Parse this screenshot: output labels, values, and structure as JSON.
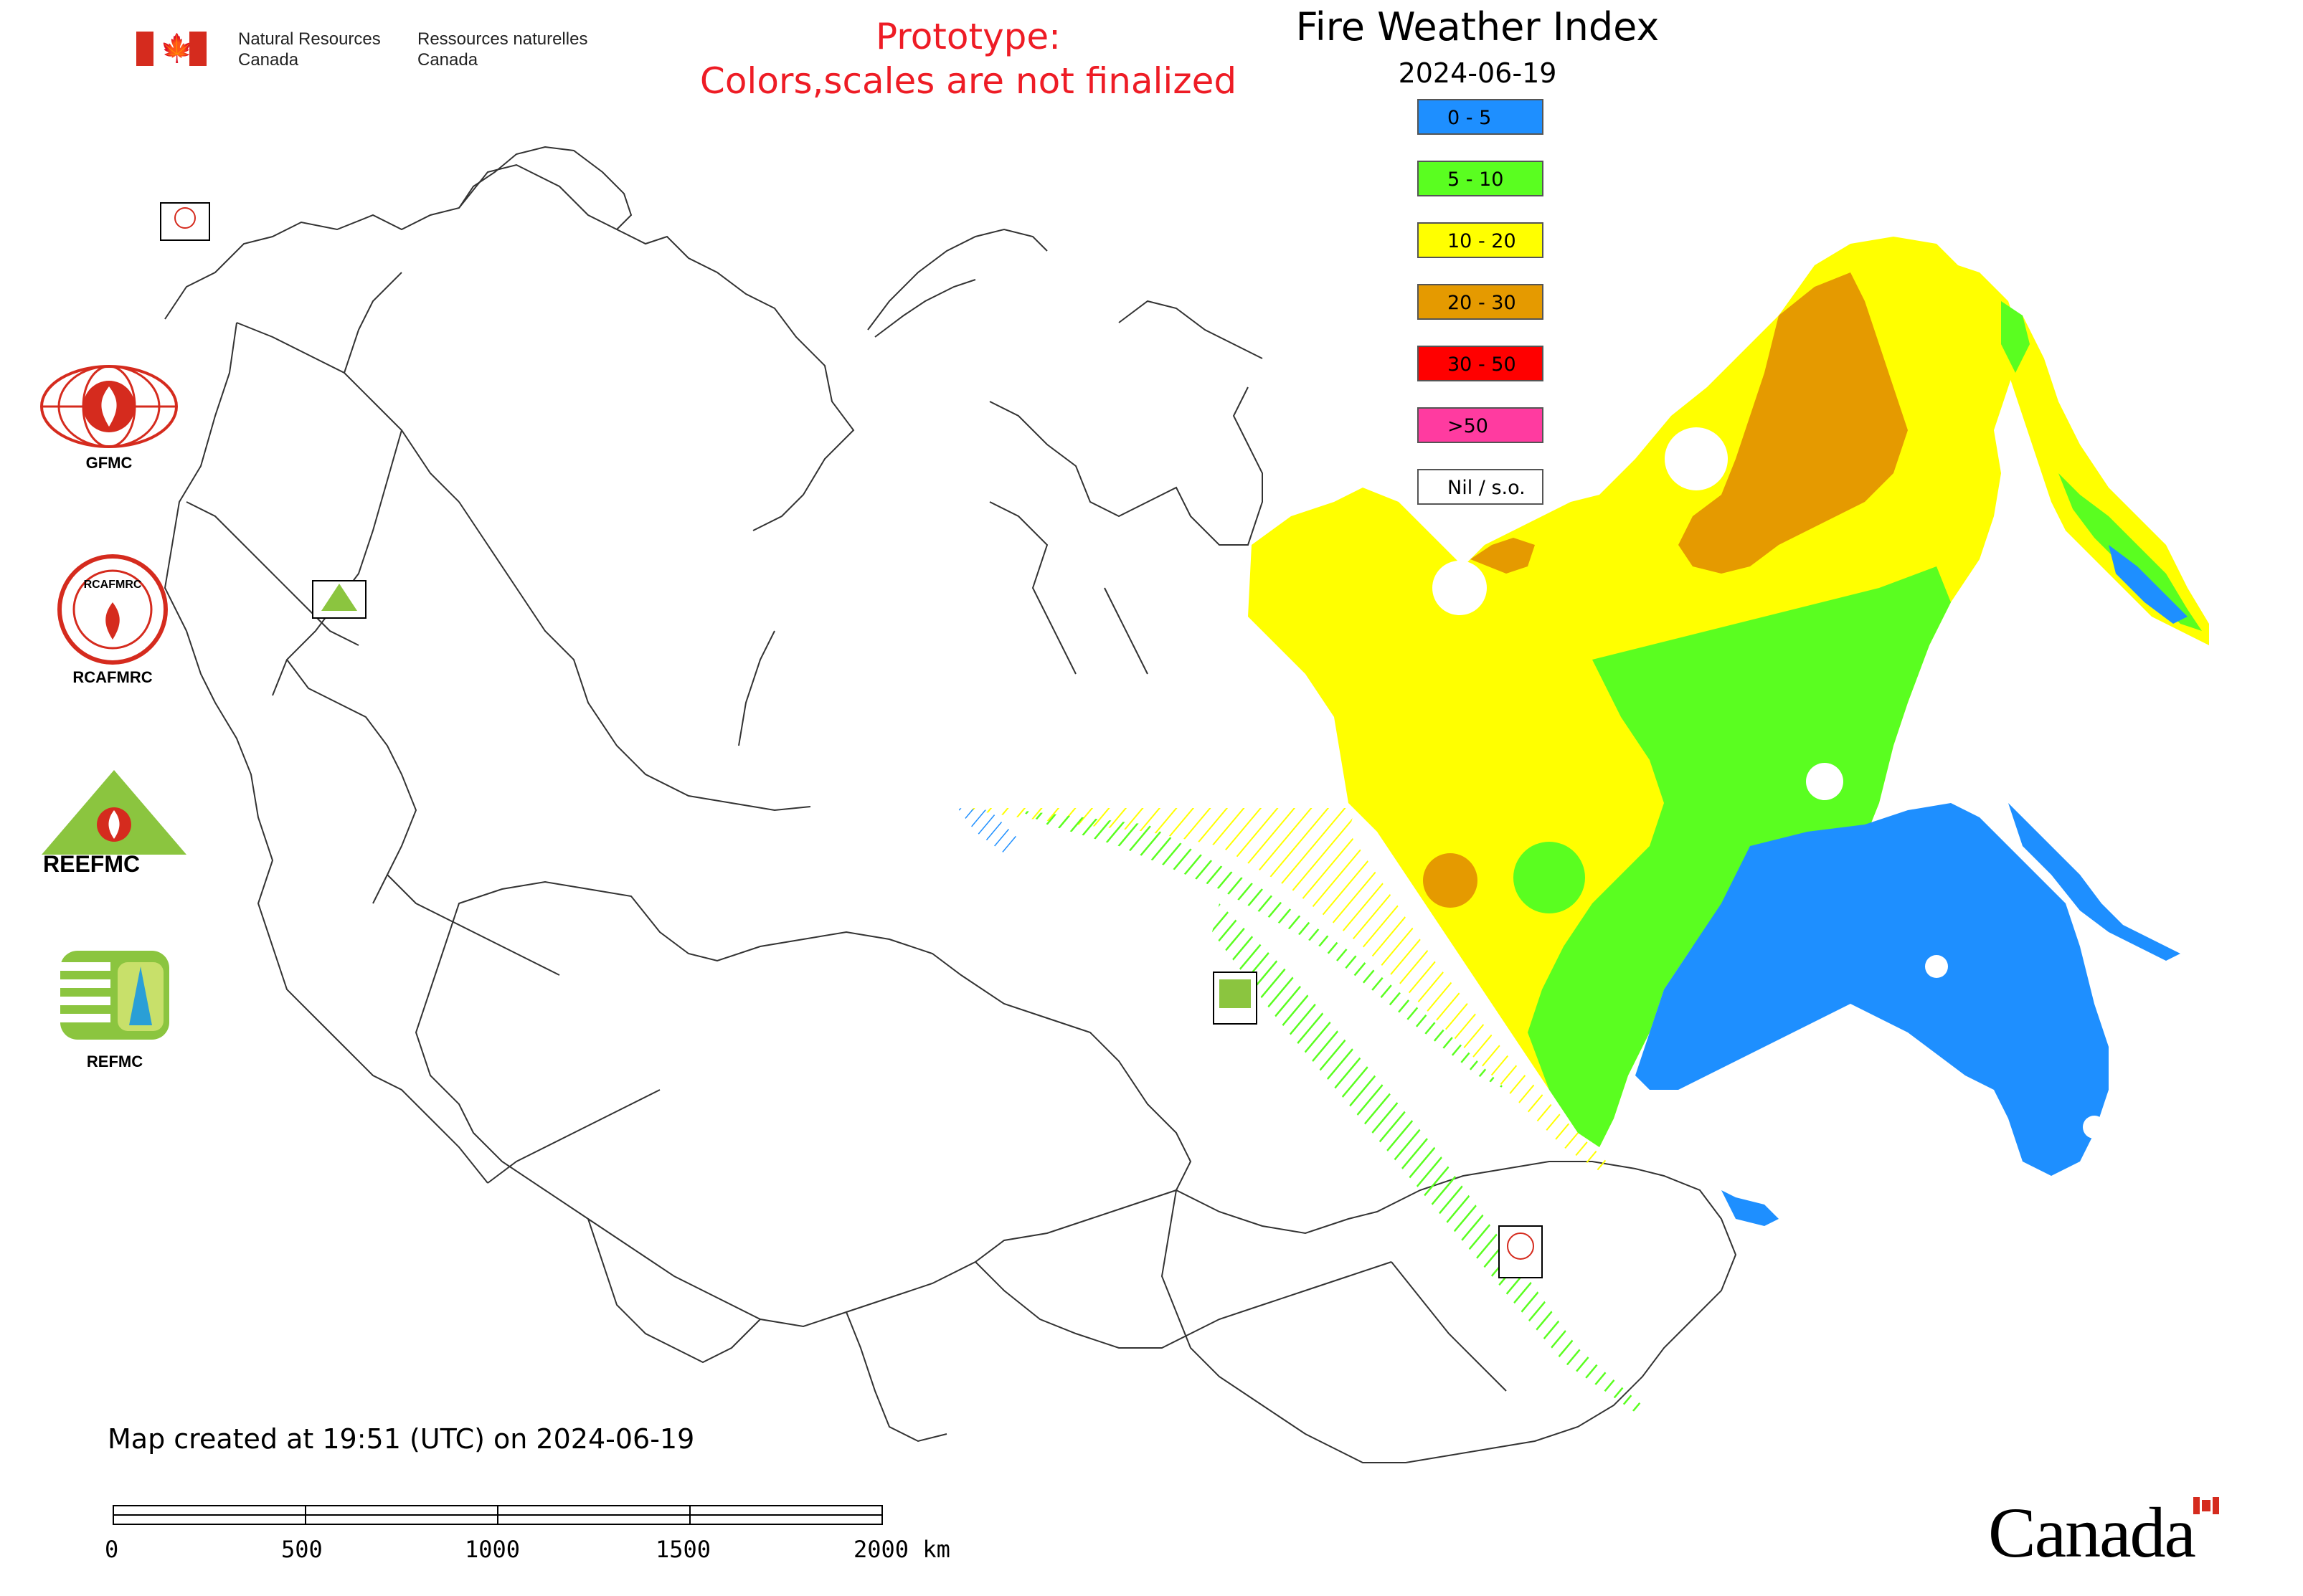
{
  "header": {
    "gov_en_line1": "Natural Resources",
    "gov_en_line2": "Canada",
    "gov_fr_line1": "Ressources naturelles",
    "gov_fr_line2": "Canada",
    "prototype_line1": "Prototype:",
    "prototype_line2": "Colors,scales are not finalized",
    "title": "Fire Weather Index",
    "date": "2024-06-19"
  },
  "legend": {
    "items": [
      {
        "label": "0 - 5",
        "color": "#1e8fff"
      },
      {
        "label": "5 - 10",
        "color": "#5afe20"
      },
      {
        "label": "10 - 20",
        "color": "#ffff00"
      },
      {
        "label": "20 - 30",
        "color": "#e59a00"
      },
      {
        "label": "30 - 50",
        "color": "#ff0000"
      },
      {
        "label": ">50",
        "color": "#ff3ba0"
      },
      {
        "label": "Nil / s.o.",
        "color": "#ffffff"
      }
    ]
  },
  "logos": {
    "gfmc": "GFMC",
    "rcafmrc": "RCAFMRC",
    "reefmc_caption": "REEFMC",
    "refmc": "REFMC",
    "reefmc_wordmark": "REEFMC",
    "rcafmrc_ring": "RCAFMRC"
  },
  "footer": {
    "created": "Map created at 19:51 (UTC) on 2024-06-19",
    "scale_labels": [
      "0",
      "500",
      "1000",
      "1500",
      "2000 km"
    ],
    "wordmark": "Canada"
  },
  "colors": {
    "blue": "#1e8fff",
    "green": "#5afe20",
    "yellow": "#ffff00",
    "orange": "#e59a00",
    "red": "#ff0000",
    "pink": "#ff3ba0",
    "prototype_red": "#ee1c25",
    "canada_red": "#d52b1e"
  }
}
